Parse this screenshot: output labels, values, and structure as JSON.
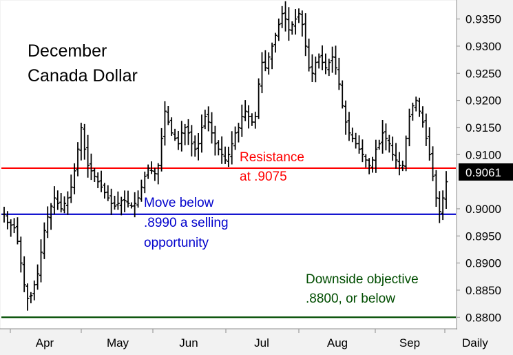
{
  "chart_data": {
    "type": "ohlc",
    "title_lines": [
      "December",
      "Canada Dollar"
    ],
    "x_axis": {
      "months": [
        "Apr",
        "May",
        "Jun",
        "Jul",
        "Aug",
        "Sep"
      ],
      "interval_label": "Daily"
    },
    "y_axis": {
      "ylim": [
        0.878,
        0.938
      ],
      "ticks": [
        "0.9350",
        "0.9300",
        "0.9250",
        "0.9200",
        "0.9150",
        "0.9100",
        "0.9000",
        "0.8950",
        "0.8900",
        "0.8850",
        "0.8800"
      ],
      "last_price": "0.9061"
    },
    "grid": false,
    "colors": {
      "background": "#ffffff",
      "price_bars": "#000000",
      "resistance": "#ff0000",
      "support": "#0000cc",
      "objective": "#004d00",
      "last_price_badge": "#000000"
    },
    "levels": [
      {
        "name": "resistance",
        "value": 0.9075,
        "label_lines": [
          "Resistance",
          "at .9075"
        ]
      },
      {
        "name": "support",
        "value": 0.899,
        "label_lines": [
          "Move below",
          ".8990 a selling",
          "opportunity"
        ]
      },
      {
        "name": "objective",
        "value": 0.88,
        "label_lines": [
          "Downside objective",
          ".8800, or below"
        ]
      }
    ],
    "price_path": [
      0.899,
      0.8975,
      0.897,
      0.8965,
      0.894,
      0.89,
      0.886,
      0.8835,
      0.884,
      0.886,
      0.888,
      0.892,
      0.896,
      0.8985,
      0.9005,
      0.902,
      0.901,
      0.9,
      0.901,
      0.902,
      0.904,
      0.907,
      0.911,
      0.915,
      0.911,
      0.908,
      0.907,
      0.906,
      0.905,
      0.904,
      0.903,
      0.902,
      0.901,
      0.9005,
      0.901,
      0.9015,
      0.9015,
      0.901,
      0.9005,
      0.901,
      0.902,
      0.904,
      0.906,
      0.9075,
      0.907,
      0.9065,
      0.908,
      0.913,
      0.918,
      0.916,
      0.914,
      0.913,
      0.912,
      0.914,
      0.915,
      0.914,
      0.912,
      0.911,
      0.912,
      0.915,
      0.917,
      0.916,
      0.914,
      0.912,
      0.911,
      0.91,
      0.909,
      0.91,
      0.912,
      0.914,
      0.915,
      0.917,
      0.918,
      0.917,
      0.916,
      0.917,
      0.923,
      0.927,
      0.926,
      0.928,
      0.93,
      0.932,
      0.934,
      0.936,
      0.935,
      0.933,
      0.934,
      0.935,
      0.936,
      0.934,
      0.93,
      0.926,
      0.925,
      0.927,
      0.928,
      0.927,
      0.926,
      0.927,
      0.928,
      0.926,
      0.923,
      0.919,
      0.916,
      0.914,
      0.913,
      0.912,
      0.911,
      0.91,
      0.909,
      0.908,
      0.909,
      0.911,
      0.912,
      0.914,
      0.913,
      0.912,
      0.91,
      0.909,
      0.908,
      0.908,
      0.913,
      0.917,
      0.919,
      0.92,
      0.918,
      0.916,
      0.913,
      0.91,
      0.906,
      0.902,
      0.8995,
      0.902,
      0.905
    ]
  }
}
